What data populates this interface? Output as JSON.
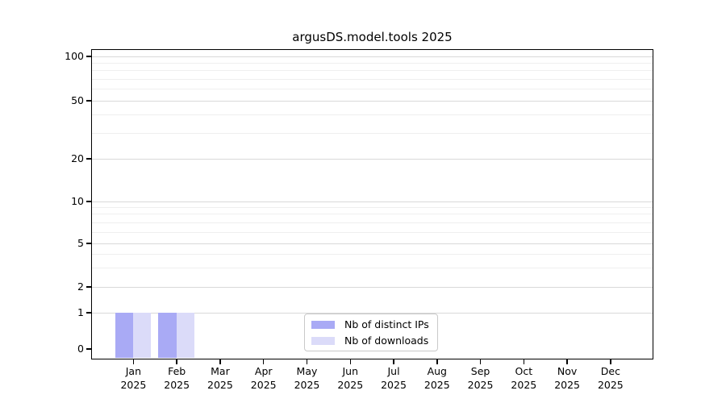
{
  "title": "argusDS.model.tools 2025",
  "chart_data": {
    "type": "bar",
    "title": "argusDS.model.tools 2025",
    "categories": [
      "Jan 2025",
      "Feb 2025",
      "Mar 2025",
      "Apr 2025",
      "May 2025",
      "Jun 2025",
      "Jul 2025",
      "Aug 2025",
      "Sep 2025",
      "Oct 2025",
      "Nov 2025",
      "Dec 2025"
    ],
    "series": [
      {
        "name": "Nb of distinct IPs",
        "color": "#a9aaf5",
        "values": [
          1,
          1,
          0,
          0,
          0,
          0,
          0,
          0,
          0,
          0,
          0,
          0
        ]
      },
      {
        "name": "Nb of downloads",
        "color": "#dbdbf9",
        "values": [
          1,
          1,
          0,
          0,
          0,
          0,
          0,
          0,
          0,
          0,
          0,
          0
        ]
      }
    ],
    "xlabel": "",
    "ylabel": "",
    "yscale": "log-like (compressed low end, labeled 0,1,2,5,10,20,50,100)",
    "yticks": [
      0,
      1,
      2,
      5,
      10,
      20,
      50,
      100
    ],
    "ylim": [
      0,
      120
    ],
    "grid": "horizontal major + faint minor gridlines",
    "legend_position": "bottom-center inside plot"
  },
  "y_axis": {
    "tick_labels": [
      "100",
      "50",
      "20",
      "10",
      "5",
      "2",
      "1",
      "0"
    ]
  },
  "x_axis": {
    "months": [
      {
        "abbr": "Jan",
        "year": "2025"
      },
      {
        "abbr": "Feb",
        "year": "2025"
      },
      {
        "abbr": "Mar",
        "year": "2025"
      },
      {
        "abbr": "Apr",
        "year": "2025"
      },
      {
        "abbr": "May",
        "year": "2025"
      },
      {
        "abbr": "Jun",
        "year": "2025"
      },
      {
        "abbr": "Jul",
        "year": "2025"
      },
      {
        "abbr": "Aug",
        "year": "2025"
      },
      {
        "abbr": "Sep",
        "year": "2025"
      },
      {
        "abbr": "Oct",
        "year": "2025"
      },
      {
        "abbr": "Nov",
        "year": "2025"
      },
      {
        "abbr": "Dec",
        "year": "2025"
      }
    ]
  },
  "legend": {
    "items": [
      {
        "label": "Nb of distinct IPs",
        "color": "#a9aaf5"
      },
      {
        "label": "Nb of downloads",
        "color": "#dbdbf9"
      }
    ]
  },
  "colors": {
    "bar_distinct_ips": "#a9aaf5",
    "bar_downloads": "#dbdbf9",
    "grid_major": "#d9d9d9",
    "grid_minor": "#efefef",
    "spine": "#000000",
    "background": "#ffffff"
  }
}
